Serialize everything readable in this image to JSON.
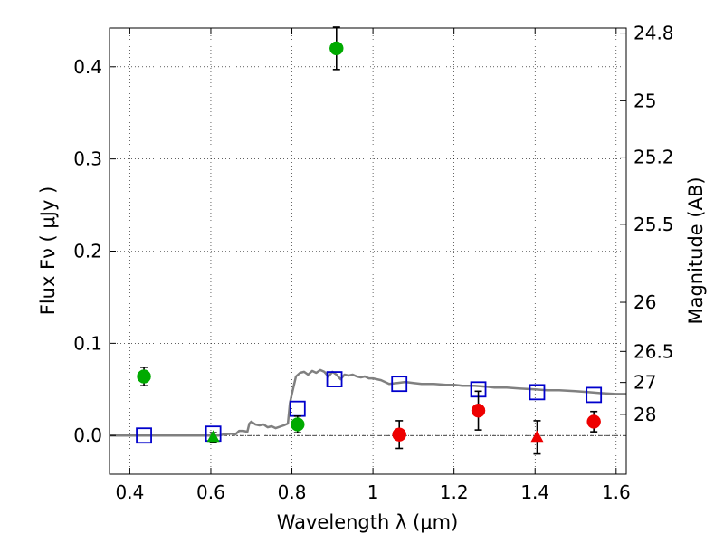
{
  "chart_data": {
    "type": "scatter",
    "xlabel": "Wavelength  λ (μm)",
    "ylabel": "Flux  Fν  ( μJy )",
    "ylabel_right": "Magnitude (AB)",
    "xlim": [
      0.35,
      1.625
    ],
    "ylim": [
      -0.042,
      0.442
    ],
    "x_ticks": [
      0.4,
      0.6,
      0.8,
      1.0,
      1.2,
      1.4,
      1.6
    ],
    "x_tick_labels": [
      "0.4",
      "0.6",
      "0.8",
      "1",
      "1.2",
      "1.4",
      "1.6"
    ],
    "y_ticks": [
      0.0,
      0.1,
      0.2,
      0.3,
      0.4
    ],
    "y_tick_labels": [
      "0.0",
      "0.1",
      "0.2",
      "0.3",
      "0.4"
    ],
    "right_ticks": [
      {
        "label": "24.8",
        "flux": 0.4365
      },
      {
        "label": "25",
        "flux": 0.3631
      },
      {
        "label": "25.2",
        "flux": 0.302
      },
      {
        "label": "25.5",
        "flux": 0.2291
      },
      {
        "label": "26",
        "flux": 0.1445
      },
      {
        "label": "26.5",
        "flux": 0.0912
      },
      {
        "label": "27",
        "flux": 0.0575
      },
      {
        "label": "28",
        "flux": 0.0229
      }
    ],
    "grid": true,
    "series": [
      {
        "kind": "model-sed-line",
        "color": "#808080",
        "x": [
          0.35,
          0.62,
          0.63,
          0.65,
          0.66,
          0.67,
          0.68,
          0.69,
          0.695,
          0.7,
          0.71,
          0.72,
          0.73,
          0.74,
          0.75,
          0.76,
          0.78,
          0.79,
          0.795,
          0.8,
          0.81,
          0.82,
          0.83,
          0.84,
          0.85,
          0.86,
          0.87,
          0.88,
          0.89,
          0.9,
          0.91,
          0.92,
          0.93,
          0.94,
          0.95,
          0.96,
          0.97,
          0.98,
          0.99,
          1.0,
          1.02,
          1.04,
          1.06,
          1.08,
          1.1,
          1.12,
          1.15,
          1.18,
          1.2,
          1.22,
          1.25,
          1.28,
          1.3,
          1.33,
          1.36,
          1.4,
          1.43,
          1.46,
          1.5,
          1.53,
          1.56,
          1.6,
          1.625
        ],
        "y": [
          0.0,
          0.0,
          0.001,
          0.002,
          0.001,
          0.005,
          0.005,
          0.004,
          0.013,
          0.015,
          0.012,
          0.011,
          0.012,
          0.009,
          0.01,
          0.008,
          0.011,
          0.013,
          0.035,
          0.045,
          0.064,
          0.068,
          0.069,
          0.066,
          0.07,
          0.068,
          0.071,
          0.069,
          0.064,
          0.069,
          0.066,
          0.061,
          0.066,
          0.065,
          0.066,
          0.064,
          0.063,
          0.064,
          0.062,
          0.062,
          0.06,
          0.056,
          0.057,
          0.058,
          0.057,
          0.056,
          0.056,
          0.055,
          0.055,
          0.054,
          0.054,
          0.053,
          0.052,
          0.052,
          0.051,
          0.05,
          0.049,
          0.049,
          0.048,
          0.047,
          0.046,
          0.045,
          0.045
        ]
      },
      {
        "kind": "model-photometry-squares",
        "color": "#0000cc",
        "x": [
          0.435,
          0.606,
          0.814,
          0.905,
          1.065,
          1.26,
          1.405,
          1.545
        ],
        "y": [
          0.0,
          0.002,
          0.029,
          0.061,
          0.056,
          0.05,
          0.047,
          0.044
        ]
      },
      {
        "kind": "observed-detections",
        "color": "#00aa00",
        "x": [
          0.435,
          0.814,
          0.91
        ],
        "y": [
          0.064,
          0.012,
          0.42
        ],
        "err": [
          0.01,
          0.009,
          0.023
        ]
      },
      {
        "kind": "observed-upper-limit",
        "marker": "triangle",
        "color": "#00aa00",
        "x": [
          0.606
        ],
        "y": [
          -0.002
        ],
        "err": [
          0.005
        ]
      },
      {
        "kind": "observed-detections",
        "color": "#ee0000",
        "x": [
          1.065,
          1.26,
          1.545
        ],
        "y": [
          0.001,
          0.027,
          0.015
        ],
        "err": [
          0.015,
          0.021,
          0.011
        ]
      },
      {
        "kind": "observed-upper-limit",
        "marker": "triangle",
        "color": "#ee0000",
        "x": [
          1.405
        ],
        "y": [
          -0.002
        ],
        "err": [
          0.018
        ]
      }
    ]
  }
}
